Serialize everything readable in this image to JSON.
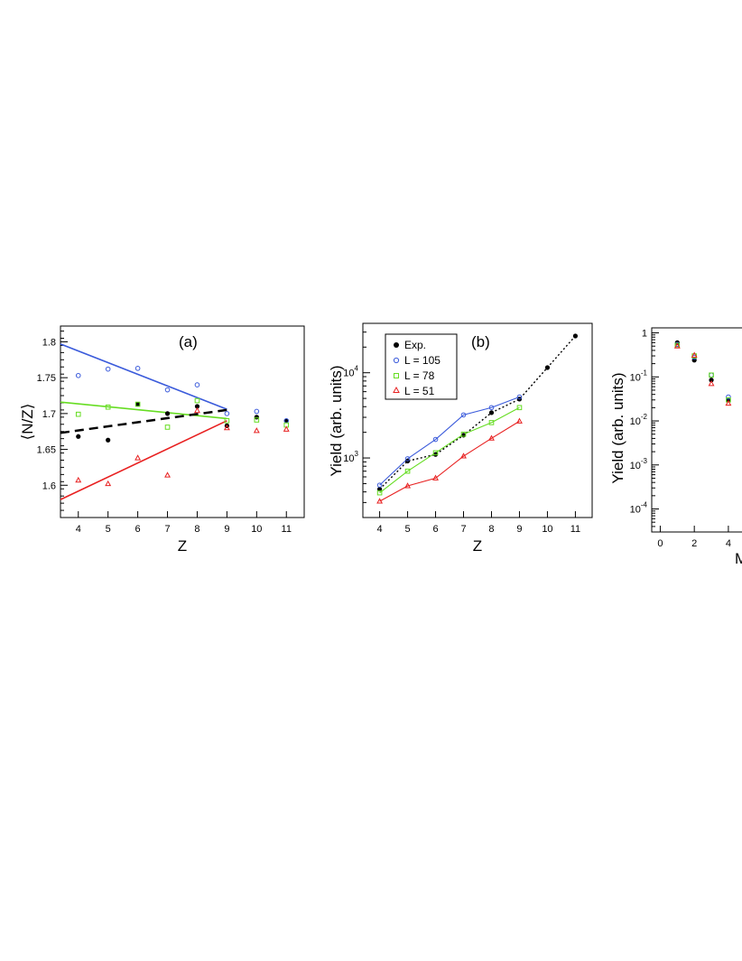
{
  "colors": {
    "exp": "#000000",
    "blue": "#3b5bdb",
    "green": "#66dd22",
    "red": "#e82020"
  },
  "chart_data": [
    {
      "type": "scatter",
      "panel": "(a)",
      "xlabel": "Z",
      "ylabel": "⟨N/Z⟩",
      "xlim": [
        3.4,
        11.6
      ],
      "ylim": [
        1.555,
        1.822
      ],
      "xticks": [
        "4",
        "5",
        "6",
        "7",
        "8",
        "9",
        "10",
        "11"
      ],
      "xtick_values": [
        4,
        5,
        6,
        7,
        8,
        9,
        10,
        11
      ],
      "yticks": [
        "1.6",
        "1.65",
        "1.7",
        "1.75",
        "1.8"
      ],
      "ytick_values": [
        1.6,
        1.65,
        1.7,
        1.75,
        1.8
      ],
      "series": [
        {
          "name": "Exp.",
          "color": "#000000",
          "marker": "filled-circle",
          "x": [
            4,
            5,
            6,
            7,
            8,
            9,
            10,
            11
          ],
          "y": [
            1.668,
            1.663,
            1.713,
            1.7,
            1.71,
            1.683,
            1.695,
            1.69
          ]
        },
        {
          "name": "L = 105",
          "color": "#3b5bdb",
          "marker": "open-circle",
          "x": [
            4,
            5,
            6,
            7,
            8,
            9,
            10,
            11
          ],
          "y": [
            1.753,
            1.762,
            1.763,
            1.733,
            1.74,
            1.7,
            1.703,
            1.69
          ]
        },
        {
          "name": "L = 78",
          "color": "#66dd22",
          "marker": "open-square",
          "x": [
            4,
            5,
            6,
            7,
            8,
            9,
            10,
            11
          ],
          "y": [
            1.699,
            1.709,
            1.713,
            1.681,
            1.718,
            1.69,
            1.691,
            1.684
          ]
        },
        {
          "name": "L = 51",
          "color": "#e82020",
          "marker": "open-triangle",
          "x": [
            4,
            5,
            6,
            7,
            8,
            9,
            10,
            11
          ],
          "y": [
            1.607,
            1.602,
            1.638,
            1.614,
            1.704,
            1.68,
            1.676,
            1.678
          ]
        }
      ],
      "fit_lines": [
        {
          "color": "#3b5bdb",
          "style": "solid",
          "x": [
            3.4,
            9.0
          ],
          "y": [
            1.797,
            1.706
          ]
        },
        {
          "color": "#66dd22",
          "style": "solid",
          "x": [
            3.4,
            9.0
          ],
          "y": [
            1.716,
            1.693
          ]
        },
        {
          "color": "#e82020",
          "style": "solid",
          "x": [
            3.4,
            9.0
          ],
          "y": [
            1.58,
            1.69
          ]
        },
        {
          "color": "#000000",
          "style": "dashed",
          "x": [
            3.4,
            9.0
          ],
          "y": [
            1.673,
            1.705
          ]
        }
      ]
    },
    {
      "type": "line",
      "panel": "(b)",
      "xlabel": "Z",
      "ylabel": "Yield (arb. units)",
      "yscale": "log",
      "xlim": [
        3.4,
        11.6
      ],
      "ylim": [
        200,
        38000
      ],
      "xticks": [
        "4",
        "5",
        "6",
        "7",
        "8",
        "9",
        "10",
        "11"
      ],
      "xtick_values": [
        4,
        5,
        6,
        7,
        8,
        9,
        10,
        11
      ],
      "yticks": [
        "10",
        "10"
      ],
      "ytick_exponents": [
        "3",
        "4"
      ],
      "ytick_values": [
        1000,
        10000
      ],
      "legend": {
        "placement": "top-left",
        "entries": [
          "Exp.",
          "L = 105",
          "L = 78",
          "L = 51"
        ]
      },
      "series": [
        {
          "name": "Exp.",
          "color": "#000000",
          "marker": "filled-circle",
          "line": "dotted",
          "x": [
            4,
            5,
            6,
            7,
            8,
            9,
            10,
            11
          ],
          "y": [
            430,
            920,
            1100,
            1850,
            3400,
            4900,
            11500,
            27000
          ]
        },
        {
          "name": "L = 105",
          "color": "#3b5bdb",
          "marker": "open-circle",
          "line": "solid",
          "x": [
            4,
            5,
            6,
            7,
            8,
            9
          ],
          "y": [
            480,
            980,
            1650,
            3200,
            3900,
            5200
          ]
        },
        {
          "name": "L = 78",
          "color": "#66dd22",
          "marker": "open-square",
          "line": "solid",
          "x": [
            4,
            5,
            6,
            7,
            8,
            9
          ],
          "y": [
            390,
            700,
            1150,
            1900,
            2600,
            3900
          ]
        },
        {
          "name": "L = 51",
          "color": "#e82020",
          "marker": "open-triangle",
          "line": "solid",
          "x": [
            4,
            5,
            6,
            7,
            8,
            9
          ],
          "y": [
            310,
            470,
            580,
            1050,
            1700,
            2700
          ]
        }
      ]
    },
    {
      "type": "scatter",
      "panel": "",
      "xlabel": "M",
      "ylabel": "Yield (arb. units)",
      "yscale": "log",
      "xlim": [
        -0.5,
        4.8
      ],
      "ylim": [
        3e-05,
        1.3
      ],
      "xticks": [
        "0",
        "2",
        "4"
      ],
      "xtick_values": [
        0,
        2,
        4
      ],
      "yticks": [
        "1",
        "10",
        "10",
        "10",
        "10"
      ],
      "ytick_exponents": [
        "",
        "-1",
        "-2",
        "-3",
        "-4"
      ],
      "ytick_values": [
        1,
        0.1,
        0.01,
        0.001,
        0.0001
      ],
      "series": [
        {
          "name": "Exp.",
          "color": "#000000",
          "marker": "filled-circle",
          "x": [
            1,
            2,
            3,
            4
          ],
          "y": [
            0.6,
            0.24,
            0.085,
            0.03
          ]
        },
        {
          "name": "L = 105",
          "color": "#3b5bdb",
          "marker": "open-circle",
          "x": [
            1,
            2,
            3,
            4
          ],
          "y": [
            0.55,
            0.28,
            0.11,
            0.035
          ]
        },
        {
          "name": "L = 78",
          "color": "#66dd22",
          "marker": "open-square",
          "x": [
            1,
            2,
            3,
            4
          ],
          "y": [
            0.52,
            0.3,
            0.11,
            0.03
          ]
        },
        {
          "name": "L = 51",
          "color": "#e82020",
          "marker": "open-triangle",
          "x": [
            1,
            2,
            3,
            4
          ],
          "y": [
            0.5,
            0.31,
            0.07,
            0.025
          ]
        }
      ]
    }
  ]
}
